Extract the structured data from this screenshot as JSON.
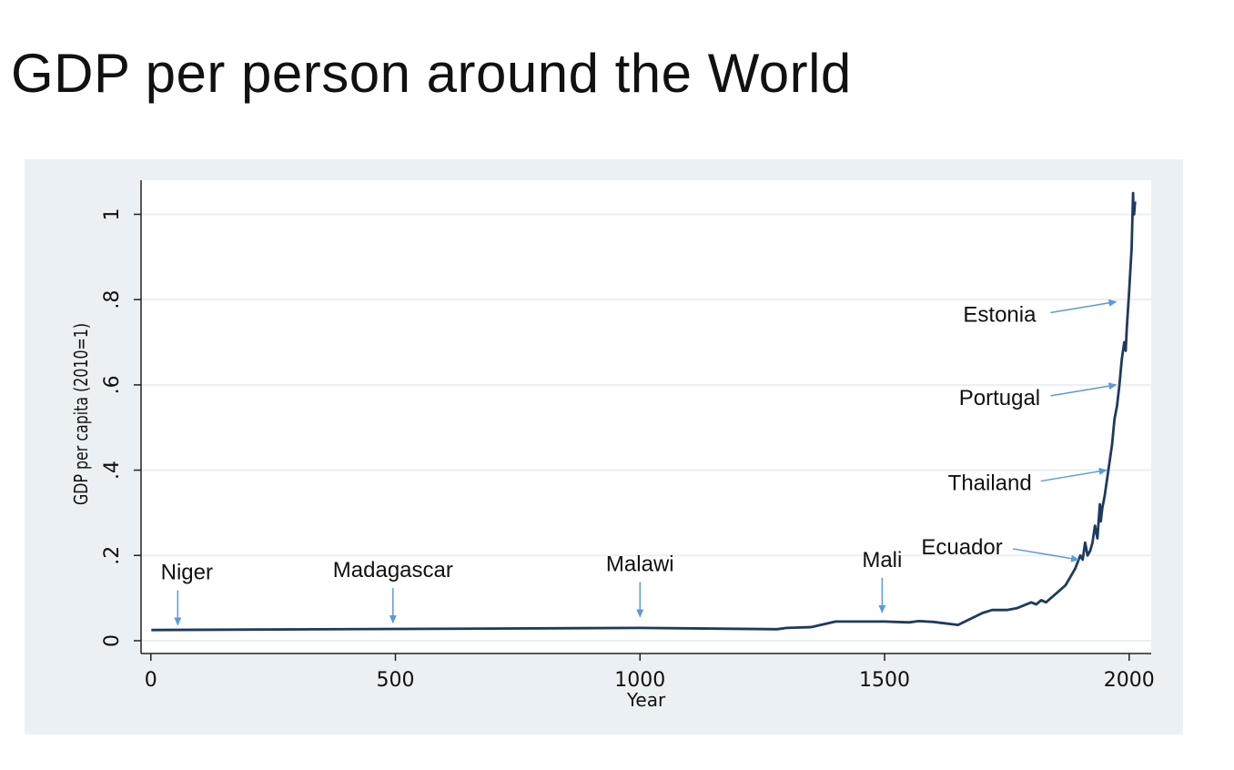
{
  "slide": {
    "title": "GDP per person around the World"
  },
  "chart_data": {
    "type": "line",
    "xlabel": "Year",
    "ylabel": "GDP per capita (2010=1)",
    "xlim": [
      -20,
      2045
    ],
    "ylim": [
      -0.03,
      1.08
    ],
    "xticks": [
      0,
      500,
      1000,
      1500,
      2000
    ],
    "xtick_labels": [
      "0",
      "500",
      "1000",
      "1500",
      "2000"
    ],
    "yticks": [
      0,
      0.2,
      0.4,
      0.6,
      0.8,
      1
    ],
    "ytick_labels": [
      "0",
      ".2",
      ".4",
      ".6",
      ".8",
      "1"
    ],
    "grid": true,
    "series_color": "#1f3a5f",
    "arrow_color": "#5b9bd5",
    "panel_color": "#eaf0f3",
    "x": [
      1,
      1000,
      1280,
      1300,
      1350,
      1400,
      1450,
      1500,
      1550,
      1570,
      1600,
      1650,
      1700,
      1720,
      1750,
      1770,
      1800,
      1810,
      1820,
      1830,
      1840,
      1850,
      1860,
      1870,
      1880,
      1890,
      1900,
      1905,
      1910,
      1915,
      1920,
      1925,
      1930,
      1935,
      1940,
      1942,
      1945,
      1950,
      1955,
      1960,
      1965,
      1970,
      1975,
      1980,
      1985,
      1990,
      1993,
      1995,
      2000,
      2003,
      2005,
      2008,
      2009,
      2010,
      2012
    ],
    "y": [
      0.025,
      0.03,
      0.027,
      0.03,
      0.032,
      0.045,
      0.045,
      0.045,
      0.043,
      0.046,
      0.044,
      0.037,
      0.065,
      0.072,
      0.072,
      0.076,
      0.09,
      0.085,
      0.095,
      0.09,
      0.1,
      0.11,
      0.12,
      0.13,
      0.15,
      0.17,
      0.2,
      0.19,
      0.23,
      0.2,
      0.21,
      0.23,
      0.27,
      0.24,
      0.32,
      0.28,
      0.31,
      0.34,
      0.38,
      0.42,
      0.46,
      0.52,
      0.55,
      0.6,
      0.66,
      0.7,
      0.68,
      0.73,
      0.82,
      0.88,
      0.92,
      1.05,
      1.0,
      1.0,
      1.03
    ],
    "annotations": [
      {
        "text": "Niger",
        "x_year": 55,
        "y_value": 0.033,
        "direction": "down"
      },
      {
        "text": "Madagascar",
        "x_year": 495,
        "y_value": 0.038,
        "direction": "down"
      },
      {
        "text": "Malawi",
        "x_year": 1000,
        "y_value": 0.052,
        "direction": "down"
      },
      {
        "text": "Mali",
        "x_year": 1495,
        "y_value": 0.062,
        "direction": "down"
      },
      {
        "text": "Ecuador",
        "x_year": 1900,
        "y_value": 0.19,
        "direction": "left"
      },
      {
        "text": "Thailand",
        "x_year": 1957,
        "y_value": 0.4,
        "direction": "left"
      },
      {
        "text": "Portugal",
        "x_year": 1977,
        "y_value": 0.6,
        "direction": "left"
      },
      {
        "text": "Estonia",
        "x_year": 1977,
        "y_value": 0.795,
        "direction": "left"
      }
    ]
  }
}
